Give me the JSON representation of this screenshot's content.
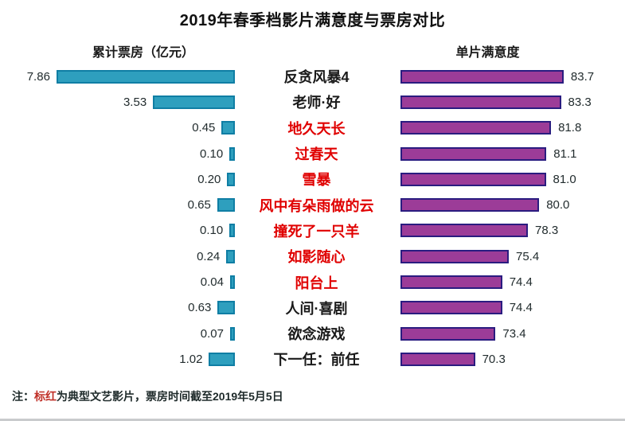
{
  "page": {
    "title": "2019年春季档影片满意度与票房对比",
    "note": {
      "prefix": "注：",
      "highlight": "标红",
      "rest": "为典型文艺影片，票房时间截至2019年5月5日"
    }
  },
  "chart_data": {
    "type": "bar",
    "layout": "diverging-tornado",
    "title": "2019年春季档影片满意度与票房对比",
    "note": "注：标红为典型文艺影片，票房时间截至2019年5月5日",
    "left_axis": {
      "label": "累计票房（亿元）",
      "range": [
        0,
        8
      ],
      "direction": "right-to-left",
      "bar_color": "#2e9fbe",
      "bar_border_color": "#0f7ea4"
    },
    "right_axis": {
      "label": "单片满意度",
      "range": [
        60,
        85
      ],
      "direction": "left-to-right",
      "bar_color": "#9c3c98",
      "bar_border_color": "#2a1c80"
    },
    "highlight_text_color": "#e00000",
    "categories": [
      "反贪风暴4",
      "老师·好",
      "地久天长",
      "过春天",
      "雪暴",
      "风中有朵雨做的云",
      "撞死了一只羊",
      "如影随心",
      "阳台上",
      "人间·喜剧",
      "欲念游戏",
      "下一任：前任"
    ],
    "series": [
      {
        "name": "累计票房（亿元）",
        "values": [
          7.86,
          3.53,
          0.45,
          0.1,
          0.2,
          0.65,
          0.1,
          0.24,
          0.04,
          0.63,
          0.07,
          1.02
        ]
      },
      {
        "name": "单片满意度",
        "values": [
          83.7,
          83.3,
          81.8,
          81.1,
          81.0,
          80.0,
          78.3,
          75.4,
          74.4,
          74.4,
          73.4,
          70.3
        ]
      }
    ],
    "rows": [
      {
        "film": "反贪风暴4",
        "box_office": "7.86",
        "satisfaction": "83.7",
        "art_film": false
      },
      {
        "film": "老师·好",
        "box_office": "3.53",
        "satisfaction": "83.3",
        "art_film": false
      },
      {
        "film": "地久天长",
        "box_office": "0.45",
        "satisfaction": "81.8",
        "art_film": true
      },
      {
        "film": "过春天",
        "box_office": "0.10",
        "satisfaction": "81.1",
        "art_film": true
      },
      {
        "film": "雪暴",
        "box_office": "0.20",
        "satisfaction": "81.0",
        "art_film": true
      },
      {
        "film": "风中有朵雨做的云",
        "box_office": "0.65",
        "satisfaction": "80.0",
        "art_film": true
      },
      {
        "film": "撞死了一只羊",
        "box_office": "0.10",
        "satisfaction": "78.3",
        "art_film": true
      },
      {
        "film": "如影随心",
        "box_office": "0.24",
        "satisfaction": "75.4",
        "art_film": true
      },
      {
        "film": "阳台上",
        "box_office": "0.04",
        "satisfaction": "74.4",
        "art_film": true
      },
      {
        "film": "人间·喜剧",
        "box_office": "0.63",
        "satisfaction": "74.4",
        "art_film": false
      },
      {
        "film": "欲念游戏",
        "box_office": "0.07",
        "satisfaction": "73.4",
        "art_film": false
      },
      {
        "film": "下一任：前任",
        "box_office": "1.02",
        "satisfaction": "70.3",
        "art_film": false
      }
    ]
  }
}
